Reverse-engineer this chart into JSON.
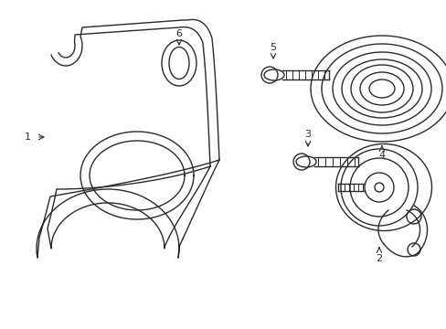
{
  "bg_color": "#ffffff",
  "line_color": "#2a2a2a",
  "line_width": 1.0,
  "fig_width": 4.89,
  "fig_height": 3.6,
  "dpi": 100
}
